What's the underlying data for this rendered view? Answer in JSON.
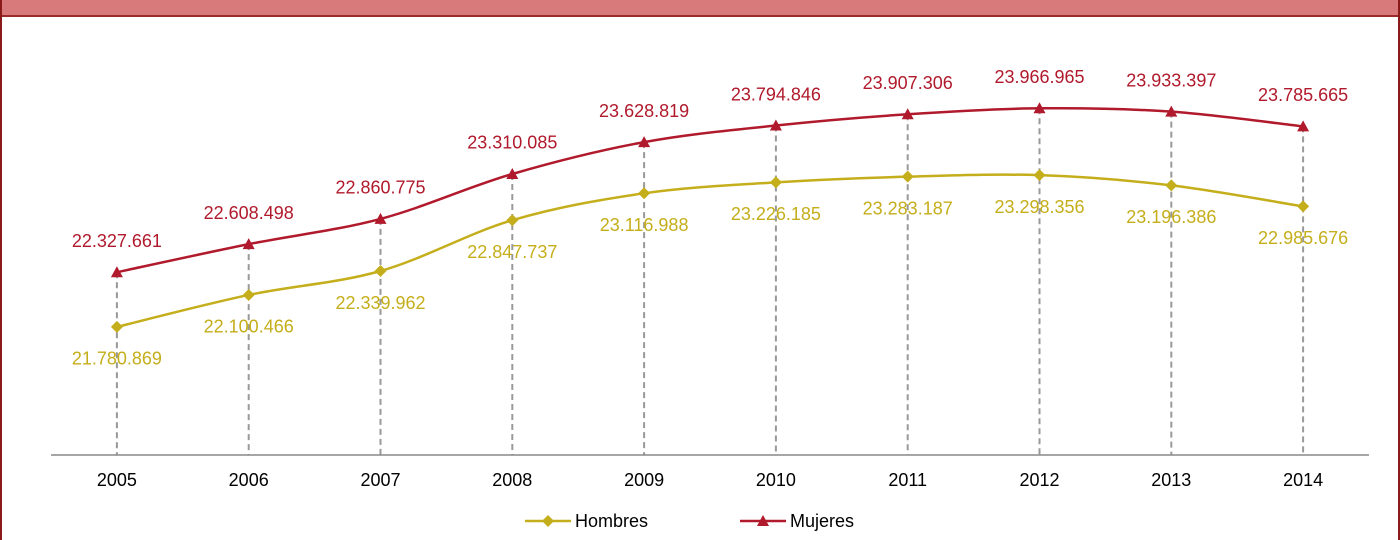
{
  "chart_data": {
    "type": "line",
    "categories": [
      "2005",
      "2006",
      "2007",
      "2008",
      "2009",
      "2010",
      "2011",
      "2012",
      "2013",
      "2014"
    ],
    "series": [
      {
        "name": "Hombres",
        "color": "#c5ae1b",
        "marker": "diamond",
        "values": [
          21780869,
          22100466,
          22339962,
          22847737,
          23116988,
          23226185,
          23283187,
          23298356,
          23196386,
          22985676
        ],
        "value_labels": [
          "21.780.869",
          "22.100.466",
          "22.339.962",
          "22.847.737",
          "23.116.988",
          "23.226.185",
          "23.283.187",
          "23.298.356",
          "23.196.386",
          "22.985.676"
        ]
      },
      {
        "name": "Mujeres",
        "color": "#b01a2c",
        "marker": "triangle",
        "values": [
          22327661,
          22608498,
          22860775,
          23310085,
          23628819,
          23794846,
          23907306,
          23966965,
          23933397,
          23785665
        ],
        "value_labels": [
          "22.327.661",
          "22.608.498",
          "22.860.775",
          "23.310.085",
          "23.628.819",
          "23.794.846",
          "23.907.306",
          "23.966.965",
          "23.933.397",
          "23.785.665"
        ]
      }
    ],
    "ylim": [
      20500000,
      24900000
    ],
    "legend": "bottom"
  }
}
